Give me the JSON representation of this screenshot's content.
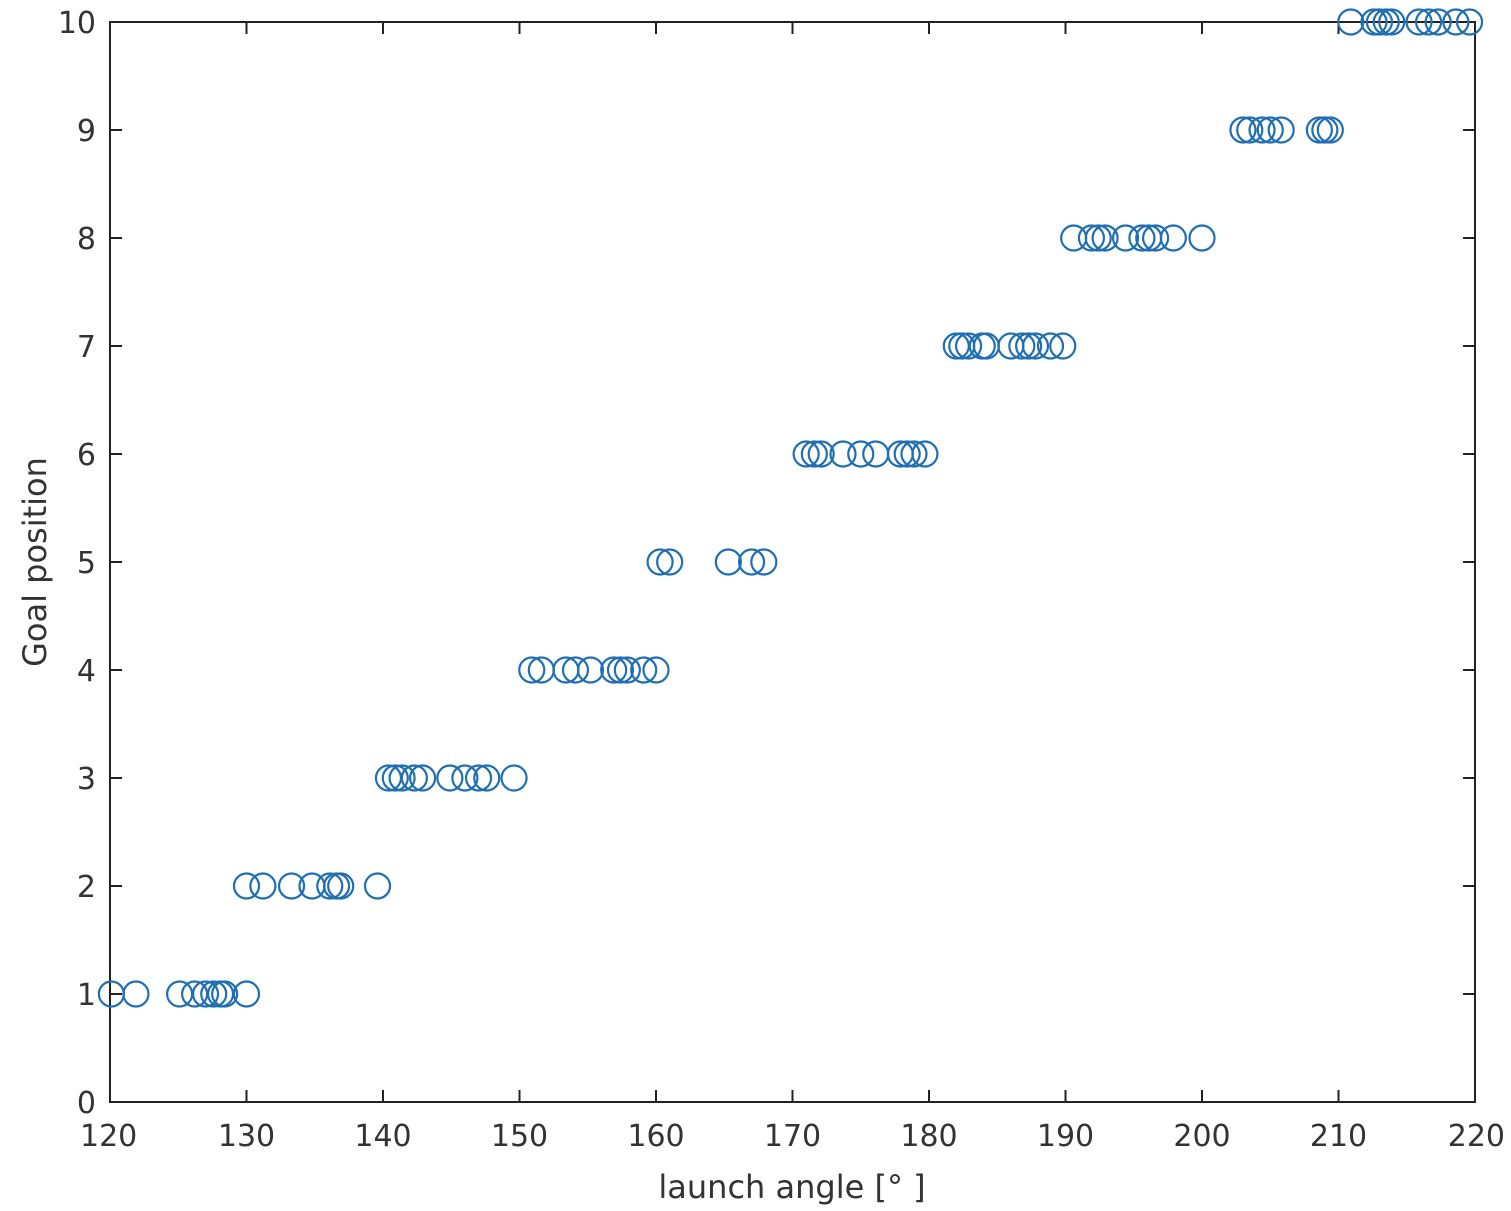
{
  "chart_data": {
    "type": "scatter",
    "title": "",
    "xlabel": "launch angle [°  ]",
    "ylabel": "Goal position",
    "xlim": [
      120,
      220
    ],
    "ylim": [
      0,
      10
    ],
    "xticks": [
      120,
      130,
      140,
      150,
      160,
      170,
      180,
      190,
      200,
      210,
      220
    ],
    "yticks": [
      0,
      1,
      2,
      3,
      4,
      5,
      6,
      7,
      8,
      9,
      10
    ],
    "marker": "open-circle",
    "marker_color": "#1f6fb2",
    "grid": false,
    "legend": "none",
    "series": [
      {
        "x": [
          120.1,
          121.9,
          125.1,
          126.2,
          127.0,
          127.6,
          128.1,
          128.4,
          130.0,
          130.0,
          131.2,
          133.3,
          134.8,
          136.1,
          136.6,
          136.9,
          139.6,
          140.4,
          140.9,
          141.4,
          142.3,
          142.9,
          144.9,
          146.0,
          147.0,
          147.6,
          149.6,
          150.9,
          151.6,
          153.4,
          154.1,
          155.2,
          156.9,
          157.4,
          157.9,
          159.1,
          160.0,
          160.3,
          161.0,
          165.3,
          167.0,
          167.9,
          171.0,
          171.6,
          172.1,
          173.7,
          175.0,
          176.1,
          177.9,
          178.4,
          178.9,
          179.7,
          182.0,
          182.4,
          182.9,
          183.9,
          184.2,
          186.0,
          186.8,
          187.3,
          187.8,
          188.9,
          189.8,
          190.6,
          191.9,
          192.4,
          192.9,
          194.4,
          195.6,
          196.1,
          196.6,
          197.9,
          200.0,
          203.0,
          203.5,
          204.4,
          205.0,
          205.8,
          208.6,
          209.0,
          209.4,
          210.9,
          212.6,
          213.0,
          213.5,
          213.9,
          215.9,
          216.6,
          217.3,
          218.6,
          219.6
        ],
        "y": [
          1,
          1,
          1,
          1,
          1,
          1,
          1,
          1,
          1,
          2,
          2,
          2,
          2,
          2,
          2,
          2,
          2,
          3,
          3,
          3,
          3,
          3,
          3,
          3,
          3,
          3,
          3,
          4,
          4,
          4,
          4,
          4,
          4,
          4,
          4,
          4,
          4,
          5,
          5,
          5,
          5,
          5,
          6,
          6,
          6,
          6,
          6,
          6,
          6,
          6,
          6,
          6,
          7,
          7,
          7,
          7,
          7,
          7,
          7,
          7,
          7,
          7,
          7,
          8,
          8,
          8,
          8,
          8,
          8,
          8,
          8,
          8,
          8,
          9,
          9,
          9,
          9,
          9,
          9,
          9,
          9,
          10,
          10,
          10,
          10,
          10,
          10,
          10,
          10,
          10,
          10
        ]
      }
    ]
  }
}
